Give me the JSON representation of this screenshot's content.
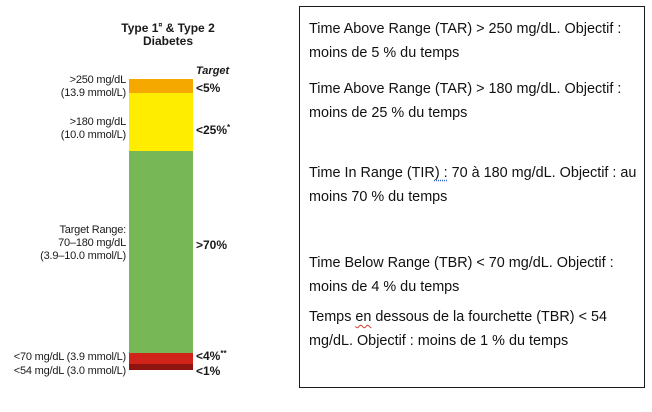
{
  "figure": {
    "title_line1": "Type 1",
    "title_sup": "¤",
    "title_line1_suffix": " & Type 2",
    "title_line2": "Diabetes",
    "target_header": "Target",
    "ranges": [
      {
        "line1": ">250 mg/dL",
        "line2": "(13.9 mmol/L)",
        "target": "<5%",
        "target_sup": "",
        "color": "#f5a800"
      },
      {
        "line1": ">180 mg/dL",
        "line2": "(10.0 mmol/L)",
        "target": "<25%",
        "target_sup": "*",
        "color": "#ffed00"
      },
      {
        "line1": "Target Range:",
        "line2": "70–180 mg/dL",
        "line3": "(3.9–10.0 mmol/L)",
        "target": ">70%",
        "target_sup": "",
        "color": "#77b756"
      },
      {
        "line1": "<70 mg/dL (3.9 mmol/L)",
        "target": "<4%",
        "target_sup": "**",
        "color": "#d0241a"
      },
      {
        "line1": "<54 mg/dL (3.0 mmol/L)",
        "target": "<1%",
        "target_sup": "",
        "color": "#8e1410"
      }
    ]
  },
  "textbox": {
    "tar250": "Time Above Range (TAR) > 250 mg/dL. Objectif : moins de 5 % du temps",
    "tar180": "Time Above Range (TAR) > 180 mg/dL. Objectif : moins de 25 % du temps",
    "tir_a": "Time In Range (TIR",
    "tir_b": ") :",
    "tir_c": " 70 à 180 mg/dL. Objectif : au moins 70 % du temps",
    "tbr70": "Time Below Range (TBR) < 70 mg/dL. Objectif : moins de 4 % du temps",
    "tbr54_a": "Temps ",
    "tbr54_b": "en",
    "tbr54_c": " dessous de la fourchette (TBR) < 54 mg/dL. Objectif : moins de 1 % du temps"
  }
}
